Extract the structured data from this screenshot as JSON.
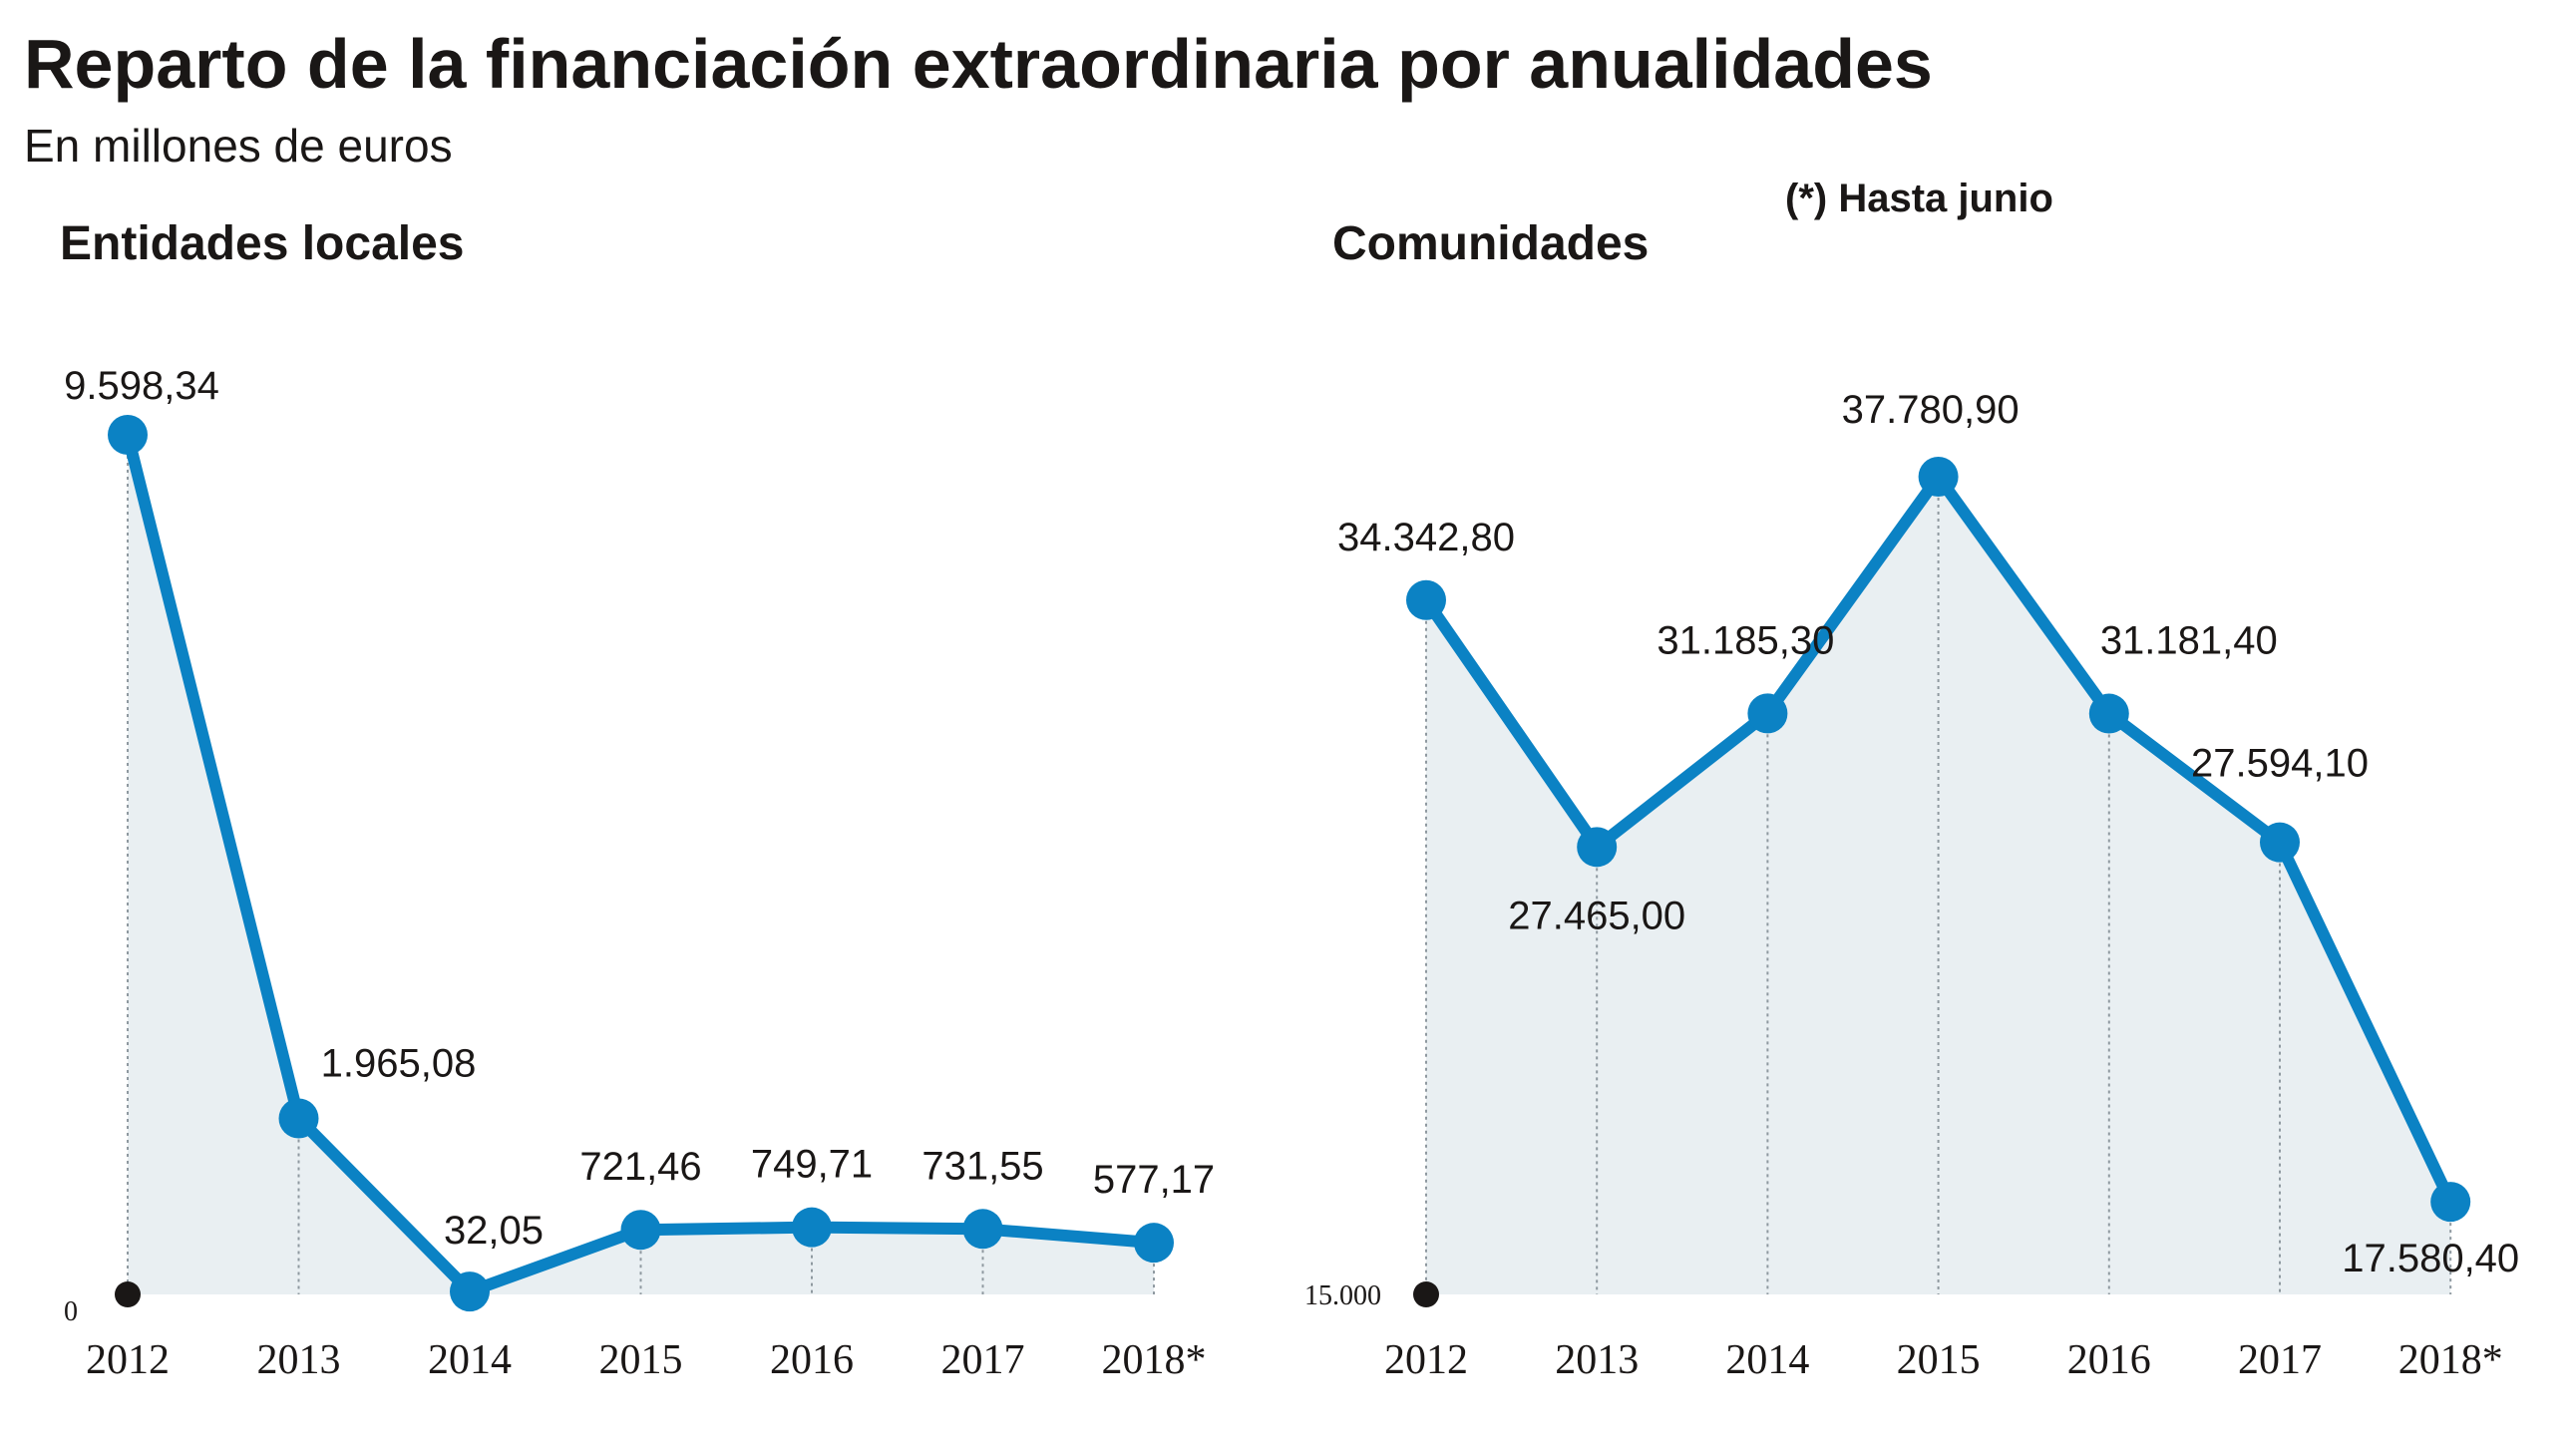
{
  "title": "Reparto de la financiación extraordinaria por anualidades",
  "subtitle": "En millones de euros",
  "note": "(*) Hasta junio",
  "colors": {
    "line": "#0b82c4",
    "area": "#e9eff2",
    "text": "#1a1716",
    "baseline_dot": "#1a1716"
  },
  "chart_data": [
    {
      "type": "area",
      "title": "Entidades locales",
      "categories": [
        "2012",
        "2013",
        "2014",
        "2015",
        "2016",
        "2017",
        "2018*"
      ],
      "values": [
        9598.34,
        1965.08,
        32.05,
        721.46,
        749.71,
        731.55,
        577.17
      ],
      "value_labels": [
        "9.598,34",
        "1.965,08",
        "32,05",
        "721,46",
        "749,71",
        "731,55",
        "577,17"
      ],
      "baseline_label": "0",
      "ylim": [
        0,
        9598.34
      ],
      "grid": false,
      "legend": "none"
    },
    {
      "type": "area",
      "title": "Comunidades",
      "categories": [
        "2012",
        "2013",
        "2014",
        "2015",
        "2016",
        "2017",
        "2018*"
      ],
      "values": [
        34342.8,
        27465.0,
        31185.3,
        37780.9,
        31181.4,
        27594.1,
        17580.4
      ],
      "value_labels": [
        "34.342,80",
        "27.465,00",
        "31.185,30",
        "37.780,90",
        "31.181,40",
        "27.594,10",
        "17.580,40"
      ],
      "baseline_label": "15.000",
      "ylim": [
        15000,
        37780.9
      ],
      "grid": false,
      "legend": "none"
    }
  ]
}
